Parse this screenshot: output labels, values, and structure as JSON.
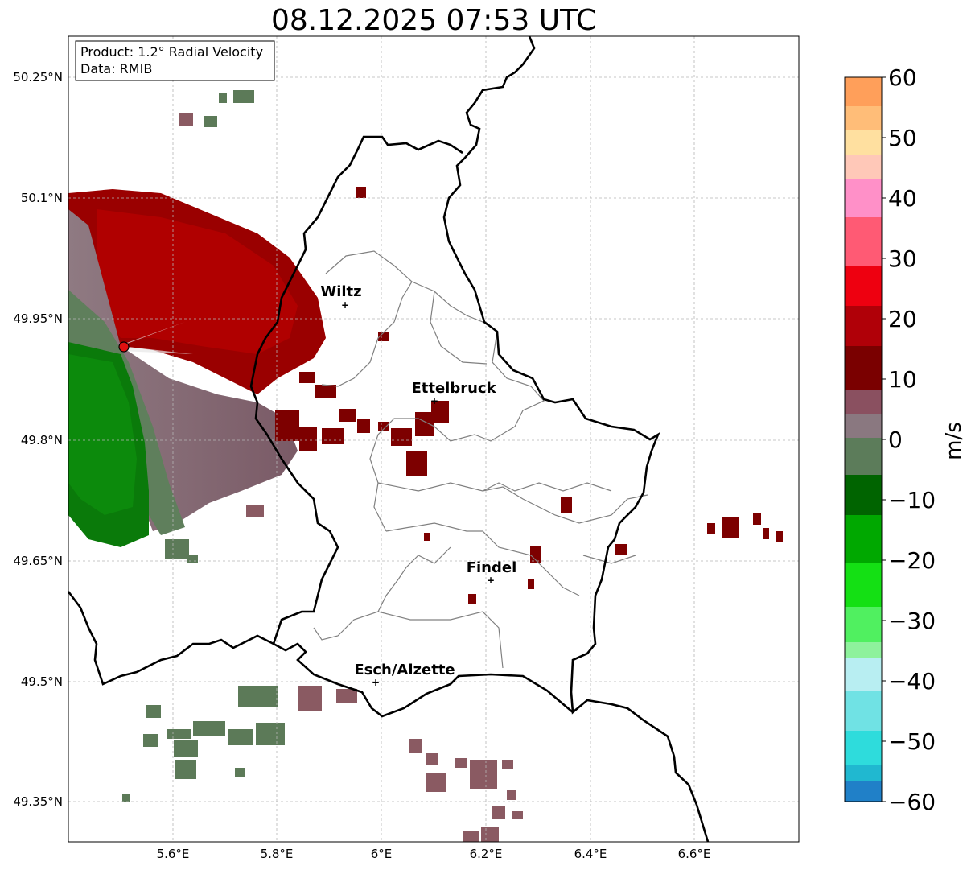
{
  "title": "08.12.2025 07:53 UTC",
  "info_box": {
    "product": "Product: 1.2° Radial Velocity",
    "data": "Data: RMIB"
  },
  "axes": {
    "x_ticks": [
      "5.6°E",
      "5.8°E",
      "6°E",
      "6.2°E",
      "6.4°E",
      "6.6°E"
    ],
    "y_ticks": [
      "50.25°N",
      "50.1°N",
      "49.95°N",
      "49.8°N",
      "49.65°N",
      "49.5°N",
      "49.35°N"
    ]
  },
  "cities": [
    {
      "name": "Wiltz",
      "lon": 5.933,
      "lat": 49.966
    },
    {
      "name": "Ettelbruck",
      "lon": 6.104,
      "lat": 49.848
    },
    {
      "name": "Findel",
      "lon": 6.204,
      "lat": 49.626
    },
    {
      "name": "Esch/Alzette",
      "lon": 5.981,
      "lat": 49.496
    }
  ],
  "radar_site": {
    "lon": 5.505,
    "lat": 49.914
  },
  "colorbar": {
    "label": "m/s",
    "min": -60,
    "max": 60,
    "ticks": [
      "60",
      "50",
      "40",
      "30",
      "20",
      "10",
      "0",
      "−10",
      "−20",
      "−30",
      "−40",
      "−50",
      "−60"
    ],
    "colors": {
      "orange": "#ff9f5a",
      "peach": "#ffc37a",
      "pink": "#ff8fca",
      "red_pink": "#ff5b6e",
      "red": "#f0000e",
      "dark_red": "#7a0000",
      "brown": "#8a5560",
      "grey_mauve": "#8f7a82",
      "grey_green": "#5c7c5a",
      "dark_green": "#006800",
      "green": "#00c000",
      "bright_green": "#28ee38",
      "light_green": "#8ef29c",
      "pale_cyan": "#c0f0f4",
      "cyan": "#2ee0e0",
      "blue": "#2080c8"
    }
  }
}
